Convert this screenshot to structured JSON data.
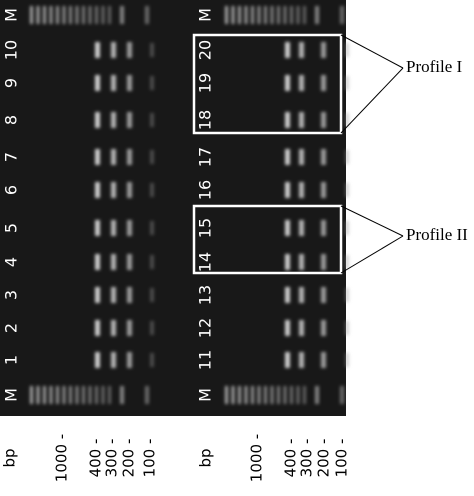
{
  "left_gel": {
    "lanes": [
      "M",
      "10",
      "9",
      "8",
      "7",
      "6",
      "5",
      "4",
      "3",
      "2",
      "1",
      "M"
    ],
    "size_unit": "bp",
    "size_ticks": [
      "1000 -",
      "400 -",
      "300 -",
      "200 -",
      "100 -"
    ]
  },
  "right_gel": {
    "lanes": [
      "M",
      "20",
      "19",
      "18",
      "17",
      "16",
      "15",
      "14",
      "13",
      "12",
      "11",
      "M"
    ],
    "size_unit": "bp",
    "size_ticks": [
      "1000 -",
      "400 -",
      "300 -",
      "200 -",
      "100 -"
    ]
  },
  "annotations": [
    "Profile I",
    "Profile II"
  ]
}
